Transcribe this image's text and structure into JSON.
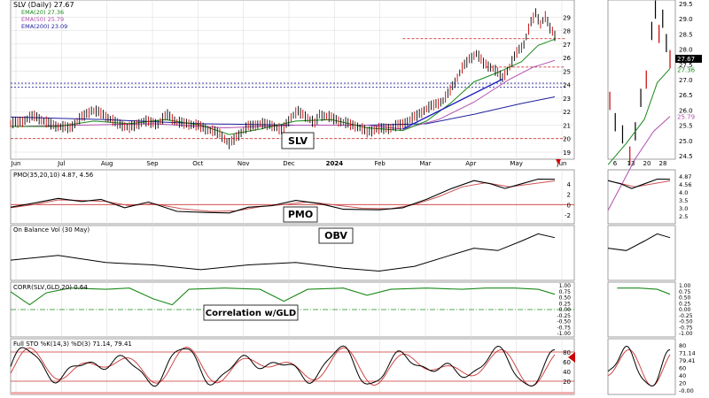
{
  "colors": {
    "price_up": "#000000",
    "price_down": "#cc0000",
    "ema20": "#1b8a1b",
    "ema50": "#b050b0",
    "ema200": "#20209c",
    "pmo": "#000000",
    "pmo_signal": "#cc5555",
    "corr": "#1b8a1b",
    "ref_line": "#cc3333",
    "annotation": "#cc0000",
    "grid": "#d8d8d8"
  },
  "chart_data": [
    {
      "type": "line",
      "title": "SLV (Daily) 27.67",
      "panel_label": "SLV",
      "legend": [
        {
          "name": "EMA(20) 27.36",
          "color_key": "ema20"
        },
        {
          "name": "EMA(50) 25.79",
          "color_key": "ema50"
        },
        {
          "name": "EMA(200) 23.09",
          "color_key": "ema200"
        }
      ],
      "x_labels": [
        "Jun",
        "Jul",
        "Aug",
        "Sep",
        "Oct",
        "Nov",
        "Dec",
        "2024",
        "Feb",
        "Mar",
        "Apr",
        "May",
        "Jun"
      ],
      "zoom_x_labels": [
        "6",
        "13",
        "20",
        "28"
      ],
      "y_ticks": [
        19,
        20,
        21,
        22,
        23,
        24,
        25,
        26,
        27,
        28,
        29
      ],
      "zoom_y_ticks": [
        "24.5",
        "25.0",
        "25.5",
        "26.0",
        "26.5",
        "27.0",
        "27.5",
        "28.0",
        "28.5",
        "29.0",
        "29.5"
      ],
      "price_badge": "27.67",
      "price_badge_2": "27.36",
      "ema_badge": "25.79",
      "ylim": [
        19,
        30
      ],
      "close_points": [
        [
          0,
          21.1
        ],
        [
          5,
          21.3
        ],
        [
          10,
          21.7
        ],
        [
          15,
          21.2
        ],
        [
          20,
          20.9
        ],
        [
          25,
          20.8
        ],
        [
          30,
          21.6
        ],
        [
          34,
          22.1
        ],
        [
          38,
          21.9
        ],
        [
          44,
          21.2
        ],
        [
          50,
          20.8
        ],
        [
          56,
          21.3
        ],
        [
          62,
          21.1
        ],
        [
          66,
          21.8
        ],
        [
          70,
          21.2
        ],
        [
          75,
          21.1
        ],
        [
          80,
          20.9
        ],
        [
          84,
          20.6
        ],
        [
          88,
          20.4
        ],
        [
          92,
          19.6
        ],
        [
          96,
          20.3
        ],
        [
          100,
          20.9
        ],
        [
          105,
          21.1
        ],
        [
          110,
          21.0
        ],
        [
          114,
          20.6
        ],
        [
          118,
          21.6
        ],
        [
          121,
          22.0
        ],
        [
          124,
          21.7
        ],
        [
          128,
          21.1
        ],
        [
          130,
          21.8
        ],
        [
          134,
          21.6
        ],
        [
          140,
          21.2
        ],
        [
          146,
          20.9
        ],
        [
          150,
          20.5
        ],
        [
          154,
          20.7
        ],
        [
          160,
          20.8
        ],
        [
          165,
          21.1
        ],
        [
          170,
          21.6
        ],
        [
          174,
          22.1
        ],
        [
          178,
          22.5
        ],
        [
          182,
          22.8
        ],
        [
          184,
          23.3
        ],
        [
          187,
          24.2
        ],
        [
          190,
          25.2
        ],
        [
          193,
          25.9
        ],
        [
          196,
          26.3
        ],
        [
          199,
          25.6
        ],
        [
          203,
          25.2
        ],
        [
          207,
          24.5
        ],
        [
          210,
          25.3
        ],
        [
          213,
          26.4
        ],
        [
          216,
          27.0
        ],
        [
          219,
          28.6
        ],
        [
          221,
          29.3
        ],
        [
          223,
          28.5
        ],
        [
          225,
          29.0
        ],
        [
          227,
          28.2
        ],
        [
          229,
          27.67
        ]
      ],
      "ema20_points": [
        [
          0,
          20.9
        ],
        [
          20,
          20.9
        ],
        [
          35,
          21.3
        ],
        [
          50,
          21.1
        ],
        [
          65,
          21.4
        ],
        [
          80,
          21.0
        ],
        [
          92,
          20.3
        ],
        [
          105,
          20.7
        ],
        [
          120,
          21.3
        ],
        [
          135,
          21.4
        ],
        [
          150,
          20.8
        ],
        [
          165,
          20.6
        ],
        [
          175,
          21.3
        ],
        [
          185,
          22.6
        ],
        [
          195,
          24.2
        ],
        [
          205,
          24.9
        ],
        [
          215,
          25.7
        ],
        [
          222,
          26.9
        ],
        [
          229,
          27.36
        ]
      ],
      "ema50_points": [
        [
          0,
          20.9
        ],
        [
          30,
          21.0
        ],
        [
          60,
          21.1
        ],
        [
          90,
          20.8
        ],
        [
          120,
          21.0
        ],
        [
          150,
          21.0
        ],
        [
          165,
          20.7
        ],
        [
          180,
          21.4
        ],
        [
          195,
          22.7
        ],
        [
          210,
          24.4
        ],
        [
          220,
          25.3
        ],
        [
          229,
          25.79
        ]
      ],
      "ema200_points": [
        [
          0,
          21.6
        ],
        [
          40,
          21.4
        ],
        [
          80,
          21.1
        ],
        [
          120,
          21.0
        ],
        [
          150,
          21.0
        ],
        [
          175,
          21.1
        ],
        [
          195,
          21.8
        ],
        [
          215,
          22.6
        ],
        [
          229,
          23.09
        ]
      ],
      "horizontal_lines": [
        27.4,
        25.3,
        24.1,
        23.8,
        20.0
      ],
      "trendline": [
        [
          165,
          20.7
        ],
        [
          207,
          24.4
        ]
      ]
    },
    {
      "type": "line",
      "title": "PMO(35,20,10) 4.87, 4.56",
      "panel_label": "PMO",
      "y_ticks": [
        "4",
        "2",
        "0",
        "-2"
      ],
      "zoom_y_ticks": [
        "4.87",
        "4.56",
        "4.0",
        "3.5",
        "3.0",
        "2.5"
      ],
      "ylim": [
        -3,
        6
      ],
      "pmo_points": [
        [
          0,
          -0.5
        ],
        [
          10,
          0.3
        ],
        [
          20,
          1.2
        ],
        [
          30,
          0.6
        ],
        [
          38,
          1.0
        ],
        [
          48,
          -0.6
        ],
        [
          58,
          0.5
        ],
        [
          70,
          -1.3
        ],
        [
          82,
          -1.5
        ],
        [
          92,
          -1.6
        ],
        [
          100,
          -0.5
        ],
        [
          110,
          -0.2
        ],
        [
          120,
          0.8
        ],
        [
          130,
          0.2
        ],
        [
          140,
          -0.9
        ],
        [
          155,
          -1.0
        ],
        [
          165,
          -0.6
        ],
        [
          175,
          1.0
        ],
        [
          185,
          3.0
        ],
        [
          195,
          4.6
        ],
        [
          202,
          4.0
        ],
        [
          208,
          3.1
        ],
        [
          215,
          4.0
        ],
        [
          222,
          4.9
        ],
        [
          229,
          4.87
        ]
      ],
      "signal_points": [
        [
          0,
          -0.6
        ],
        [
          10,
          0.0
        ],
        [
          20,
          0.9
        ],
        [
          30,
          0.8
        ],
        [
          40,
          0.6
        ],
        [
          50,
          -0.2
        ],
        [
          60,
          0.2
        ],
        [
          72,
          -0.8
        ],
        [
          84,
          -1.3
        ],
        [
          95,
          -1.2
        ],
        [
          105,
          -0.4
        ],
        [
          115,
          0.0
        ],
        [
          125,
          0.5
        ],
        [
          135,
          0.0
        ],
        [
          148,
          -0.7
        ],
        [
          160,
          -0.8
        ],
        [
          170,
          0.0
        ],
        [
          180,
          1.5
        ],
        [
          190,
          3.4
        ],
        [
          200,
          4.2
        ],
        [
          210,
          3.4
        ],
        [
          218,
          3.9
        ],
        [
          229,
          4.56
        ]
      ]
    },
    {
      "type": "line",
      "title": "On Balance Vol (30 May)",
      "panel_label": "OBV",
      "obv_points": [
        [
          0,
          0.35
        ],
        [
          20,
          0.45
        ],
        [
          40,
          0.3
        ],
        [
          60,
          0.25
        ],
        [
          80,
          0.15
        ],
        [
          100,
          0.25
        ],
        [
          120,
          0.3
        ],
        [
          140,
          0.18
        ],
        [
          155,
          0.12
        ],
        [
          170,
          0.22
        ],
        [
          185,
          0.45
        ],
        [
          195,
          0.6
        ],
        [
          205,
          0.55
        ],
        [
          215,
          0.75
        ],
        [
          222,
          0.9
        ],
        [
          229,
          0.82
        ]
      ]
    },
    {
      "type": "line",
      "title": "CORR(SLV,GLD,20) 0.64",
      "panel_label": "Correlation w/GLD",
      "y_ticks": [
        "1.00",
        "0.75",
        "0.50",
        "0.25",
        "0.00",
        "-0.25",
        "-0.50",
        "-0.75",
        "-1.00"
      ],
      "ylim": [
        -1,
        1
      ],
      "corr_points": [
        [
          0,
          0.75
        ],
        [
          8,
          0.2
        ],
        [
          15,
          0.7
        ],
        [
          25,
          0.9
        ],
        [
          40,
          0.85
        ],
        [
          50,
          0.9
        ],
        [
          60,
          0.45
        ],
        [
          68,
          0.2
        ],
        [
          75,
          0.85
        ],
        [
          90,
          0.9
        ],
        [
          105,
          0.85
        ],
        [
          115,
          0.35
        ],
        [
          125,
          0.85
        ],
        [
          140,
          0.9
        ],
        [
          150,
          0.6
        ],
        [
          160,
          0.85
        ],
        [
          175,
          0.9
        ],
        [
          190,
          0.85
        ],
        [
          200,
          0.9
        ],
        [
          212,
          0.9
        ],
        [
          222,
          0.85
        ],
        [
          229,
          0.64
        ]
      ]
    },
    {
      "type": "line",
      "title": "Full STO %K(14,3) %D(3) 71.14, 79.41",
      "y_ticks": [
        "80",
        "60",
        "40",
        "20"
      ],
      "zoom_y_ticks": [
        "80",
        "71.14",
        "79.41",
        "60",
        "40",
        "20",
        "-0.00"
      ],
      "ylim": [
        0,
        100
      ],
      "overbought": 80,
      "oversold": 20
    }
  ]
}
